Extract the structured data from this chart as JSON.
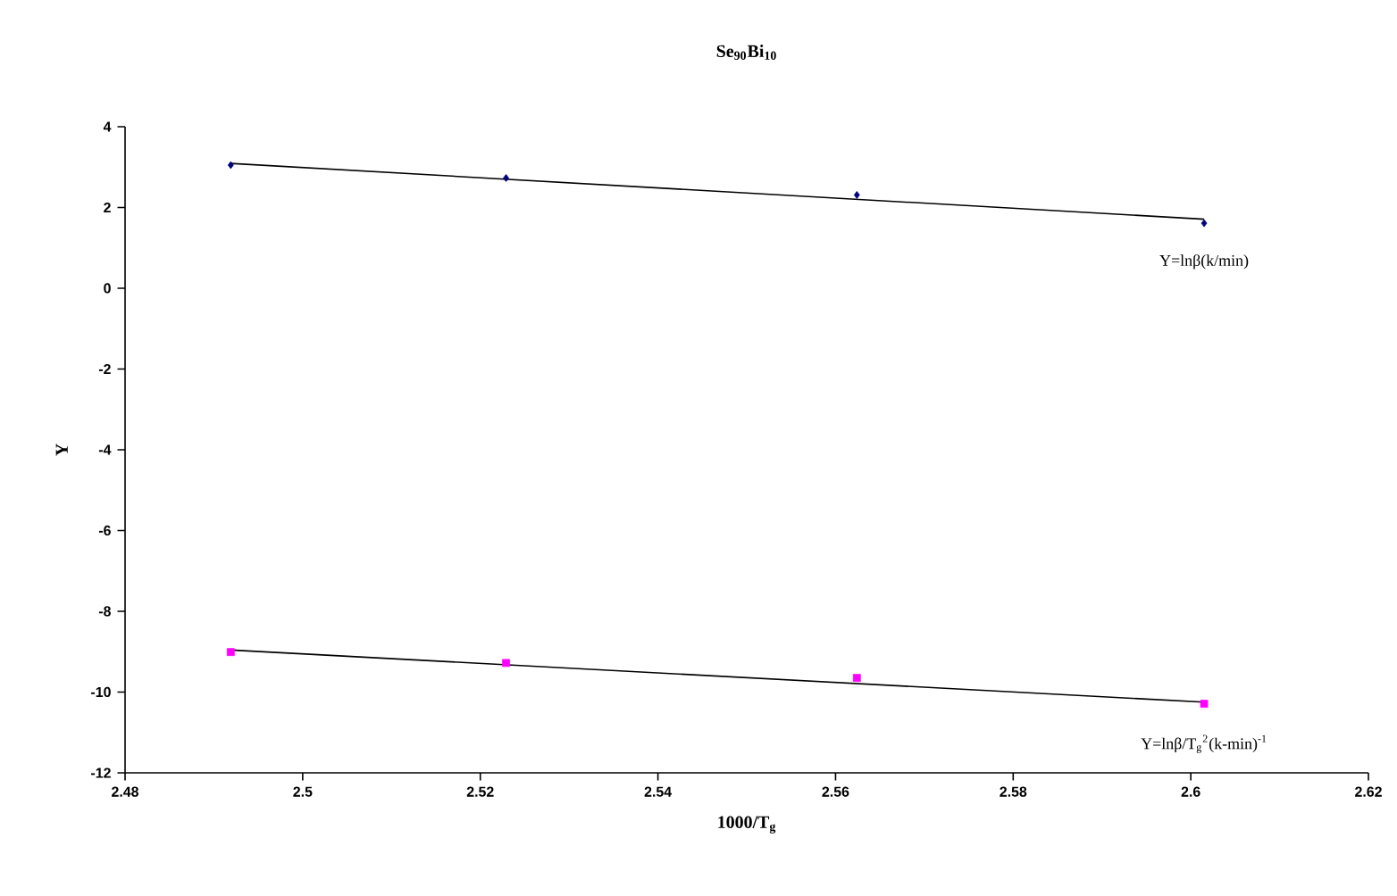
{
  "chart_data": {
    "type": "scatter",
    "title": "Se$_{90}$Bi$_{10}$",
    "xlabel": "1000/T$_{g}$",
    "ylabel": "Y",
    "xlim": [
      2.48,
      2.62
    ],
    "ylim": [
      -12,
      4
    ],
    "xticks": [
      2.48,
      2.5,
      2.52,
      2.54,
      2.56,
      2.58,
      2.6,
      2.62
    ],
    "yticks": [
      -12,
      -10,
      -8,
      -6,
      -4,
      -2,
      0,
      2,
      4
    ],
    "grid": false,
    "series": [
      {
        "marker": "diamond",
        "color": "#000080",
        "x": [
          2.4919,
          2.5229,
          2.5624,
          2.6015
        ],
        "values": [
          3.05,
          2.73,
          2.31,
          1.61
        ]
      },
      {
        "marker": "square",
        "color": "#ff00ff",
        "x": [
          2.4919,
          2.5229,
          2.5624,
          2.6015
        ],
        "values": [
          -9.01,
          -9.28,
          -9.65,
          -10.29
        ]
      },
      {
        "type": "line",
        "marker": "none",
        "color": "#000000",
        "x": [
          2.4919,
          2.6015
        ],
        "values": [
          3.09,
          1.71
        ]
      },
      {
        "type": "line",
        "marker": "none",
        "color": "#000000",
        "x": [
          2.4919,
          2.6015
        ],
        "values": [
          -8.96,
          -10.25
        ]
      }
    ],
    "annotations": [
      "Y=lnβ(k/min)",
      "Y=lnβ/T$_{g}$$^{2}$(k-min)$^{-1}$"
    ]
  }
}
